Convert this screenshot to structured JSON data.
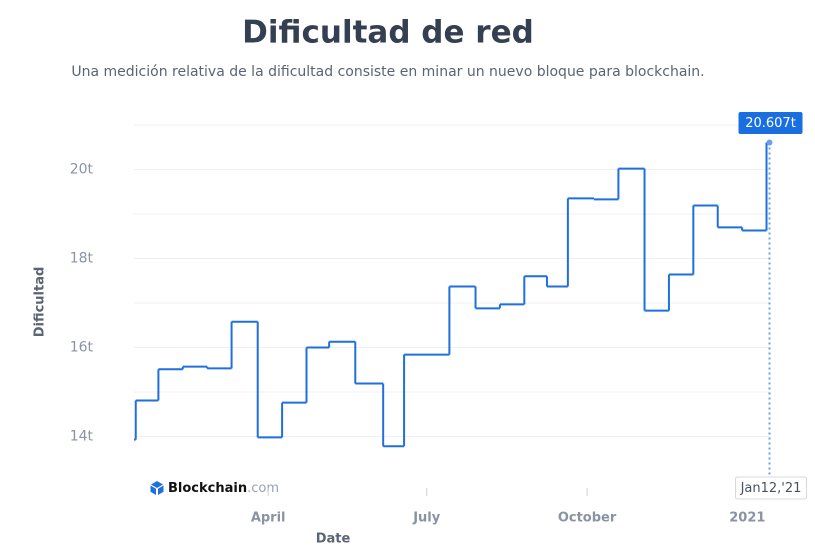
{
  "chart_data": {
    "type": "line",
    "step": true,
    "title": "Dificultad de red",
    "subtitle": "Una medición relativa de la dificultad consiste en minar un nuevo bloque para blockchain.",
    "x_label": "Date",
    "y_label": "Dificultad",
    "brand_name": "Blockchain",
    "brand_suffix": ".com",
    "x": [
      "2020-01-15",
      "2020-01-16",
      "2020-01-29",
      "2020-02-12",
      "2020-02-26",
      "2020-03-11",
      "2020-03-26",
      "2020-04-09",
      "2020-04-23",
      "2020-05-06",
      "2020-05-21",
      "2020-06-06",
      "2020-06-18",
      "2020-07-14",
      "2020-07-29",
      "2020-08-12",
      "2020-08-26",
      "2020-09-08",
      "2020-09-20",
      "2020-10-05",
      "2020-10-19",
      "2020-11-03",
      "2020-11-17",
      "2020-12-01",
      "2020-12-15",
      "2020-12-29",
      "2021-01-12"
    ],
    "series": [
      {
        "name": "Dificultad",
        "color": "#1f6fdc",
        "values": [
          13.93,
          14.81,
          15.51,
          15.57,
          15.53,
          16.58,
          13.98,
          14.76,
          16.0,
          16.13,
          15.19,
          13.78,
          15.84,
          17.37,
          16.88,
          16.97,
          17.6,
          17.37,
          19.35,
          19.33,
          20.02,
          16.83,
          17.64,
          19.19,
          18.7,
          18.63,
          20.607
        ]
      }
    ],
    "tooltip": {
      "value_label": "20.607t",
      "x_label": "Jan12,'21"
    },
    "xlim": [
      "2020-01-15",
      "2021-01-14"
    ],
    "xticks": [
      {
        "value": "2020-04-01",
        "label": "April"
      },
      {
        "value": "2020-07-01",
        "label": "July"
      },
      {
        "value": "2020-10-01",
        "label": "October"
      },
      {
        "value": "2021-01-01",
        "label": "2021"
      }
    ],
    "ylim": [
      13,
      21
    ],
    "yticks": [
      {
        "value": 14,
        "label": "14t"
      },
      {
        "value": 16,
        "label": "16t"
      },
      {
        "value": 18,
        "label": "18t"
      },
      {
        "value": 20,
        "label": "20t"
      }
    ],
    "yminor": [
      15,
      17,
      19,
      21
    ],
    "grid": true
  }
}
